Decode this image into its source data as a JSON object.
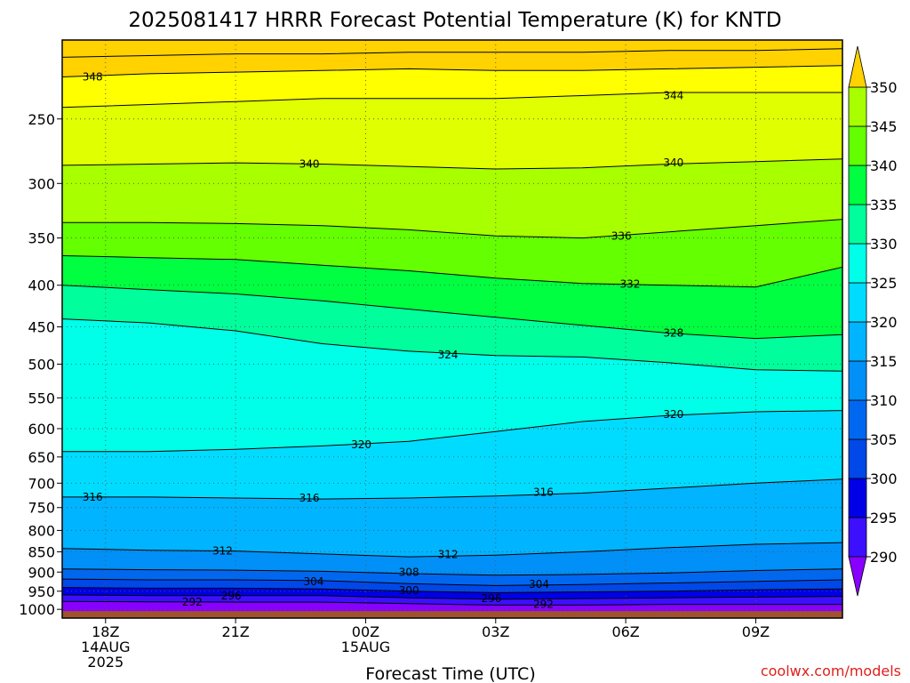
{
  "title": "2025081417 HRRR Forecast Potential Temperature (K) for KNTD",
  "credit": "coolwx.com/models",
  "colors": {
    "ground": "#a0522d",
    "band_fills": [
      "#8800ff",
      "#3c10ff",
      "#0000e6",
      "#0048e8",
      "#0068f0",
      "#0090f8",
      "#00b4ff",
      "#00dcff",
      "#00ffe8",
      "#00ff9c",
      "#00ff40",
      "#64ff00",
      "#a8ff00",
      "#e0ff00",
      "#ffff00",
      "#ffd200"
    ]
  },
  "chart_data": {
    "type": "contour",
    "xlabel": "Forecast Time (UTC)",
    "ylabel": "",
    "y_scale": "log pressure (hPa), inverted",
    "x_ticks": [
      {
        "hour": 1,
        "lines": [
          "18Z",
          "14AUG",
          "2025"
        ]
      },
      {
        "hour": 4,
        "lines": [
          "21Z"
        ]
      },
      {
        "hour": 7,
        "lines": [
          "00Z",
          "15AUG"
        ]
      },
      {
        "hour": 10,
        "lines": [
          "03Z"
        ]
      },
      {
        "hour": 13,
        "lines": [
          "06Z"
        ]
      },
      {
        "hour": 16,
        "lines": [
          "09Z"
        ]
      }
    ],
    "y_ticks": [
      "250",
      "300",
      "350",
      "400",
      "450",
      "500",
      "550",
      "600",
      "650",
      "700",
      "750",
      "800",
      "850",
      "900",
      "950",
      "1000"
    ],
    "x_range_hours": [
      0,
      18
    ],
    "y_range_hpa": [
      200,
      1025
    ],
    "surface_hpa": 1005,
    "colorbar": {
      "levels": [
        290,
        295,
        300,
        305,
        310,
        315,
        320,
        325,
        330,
        335,
        340,
        345,
        350
      ],
      "tick_labels": [
        "290",
        "295",
        "300",
        "305",
        "310",
        "315",
        "320",
        "325",
        "330",
        "335",
        "340",
        "345",
        "350"
      ],
      "extend": "both"
    },
    "contour_interval_K": 4,
    "times_h": [
      0,
      2,
      4,
      6,
      8,
      10,
      12,
      14,
      16,
      18
    ],
    "isentropes": [
      {
        "theta": 292,
        "label": "292",
        "p": [
          978,
          979,
          980,
          980,
          984,
          988,
          988,
          986,
          986,
          986
        ]
      },
      {
        "theta": 296,
        "label": "296",
        "p": [
          960,
          962,
          962,
          962,
          968,
          972,
          970,
          968,
          966,
          964
        ]
      },
      {
        "theta": 300,
        "label": "300",
        "p": [
          940,
          942,
          942,
          944,
          950,
          954,
          952,
          950,
          946,
          944
        ]
      },
      {
        "theta": 304,
        "label": "304",
        "p": [
          918,
          920,
          920,
          922,
          930,
          935,
          932,
          928,
          924,
          920
        ]
      },
      {
        "theta": 308,
        "label": "308",
        "p": [
          892,
          894,
          895,
          898,
          904,
          908,
          906,
          902,
          896,
          892
        ]
      },
      {
        "theta": 312,
        "label": "312",
        "p": [
          842,
          846,
          848,
          855,
          862,
          858,
          850,
          840,
          832,
          828
        ]
      },
      {
        "theta": 316,
        "label": "316",
        "p": [
          728,
          728,
          730,
          732,
          730,
          726,
          720,
          710,
          700,
          692
        ]
      },
      {
        "theta": 320,
        "label": "320",
        "p": [
          640,
          640,
          636,
          630,
          622,
          605,
          588,
          578,
          572,
          570
        ]
      },
      {
        "theta": 324,
        "label": "324",
        "p": [
          440,
          445,
          455,
          472,
          482,
          488,
          490,
          498,
          508,
          510
        ]
      },
      {
        "theta": 328,
        "label": "328",
        "p": [
          400,
          405,
          410,
          418,
          428,
          438,
          448,
          458,
          465,
          460
        ]
      },
      {
        "theta": 332,
        "label": "332",
        "p": [
          368,
          370,
          372,
          378,
          384,
          392,
          398,
          400,
          402,
          380
        ]
      },
      {
        "theta": 336,
        "label": "336",
        "p": [
          335,
          335,
          336,
          338,
          342,
          348,
          350,
          344,
          338,
          332
        ]
      },
      {
        "theta": 340,
        "label": "340",
        "p": [
          285,
          284,
          283,
          284,
          286,
          288,
          287,
          284,
          282,
          280
        ]
      },
      {
        "theta": 344,
        "label": "344",
        "p": [
          242,
          240,
          238,
          236,
          236,
          236,
          234,
          232,
          232,
          232
        ]
      },
      {
        "theta": 348,
        "label": "348",
        "p": [
          222,
          220,
          219,
          218,
          217,
          218,
          218,
          217,
          216,
          215
        ]
      },
      {
        "theta": 350,
        "label": "",
        "p": [
          210,
          209,
          208,
          208,
          207,
          207,
          207,
          206,
          206,
          205
        ]
      }
    ],
    "contour_labels": [
      {
        "text": "348",
        "hour": 0.7,
        "p": 222
      },
      {
        "text": "344",
        "hour": 14.1,
        "p": 234
      },
      {
        "text": "340",
        "hour": 5.7,
        "p": 284
      },
      {
        "text": "340",
        "hour": 14.1,
        "p": 283
      },
      {
        "text": "336",
        "hour": 12.9,
        "p": 348
      },
      {
        "text": "332",
        "hour": 13.1,
        "p": 399
      },
      {
        "text": "328",
        "hour": 14.1,
        "p": 458
      },
      {
        "text": "324",
        "hour": 8.9,
        "p": 487
      },
      {
        "text": "320",
        "hour": 14.1,
        "p": 576
      },
      {
        "text": "320",
        "hour": 6.9,
        "p": 628
      },
      {
        "text": "316",
        "hour": 0.7,
        "p": 728
      },
      {
        "text": "316",
        "hour": 5.7,
        "p": 730
      },
      {
        "text": "316",
        "hour": 11.1,
        "p": 718
      },
      {
        "text": "312",
        "hour": 3.7,
        "p": 848
      },
      {
        "text": "312",
        "hour": 8.9,
        "p": 856
      },
      {
        "text": "308",
        "hour": 8.0,
        "p": 900
      },
      {
        "text": "304",
        "hour": 5.8,
        "p": 925
      },
      {
        "text": "304",
        "hour": 11.0,
        "p": 932
      },
      {
        "text": "300",
        "hour": 8.0,
        "p": 948
      },
      {
        "text": "296",
        "hour": 3.9,
        "p": 963
      },
      {
        "text": "296",
        "hour": 9.9,
        "p": 970
      },
      {
        "text": "292",
        "hour": 3.0,
        "p": 980
      },
      {
        "text": "292",
        "hour": 11.1,
        "p": 986
      }
    ]
  }
}
